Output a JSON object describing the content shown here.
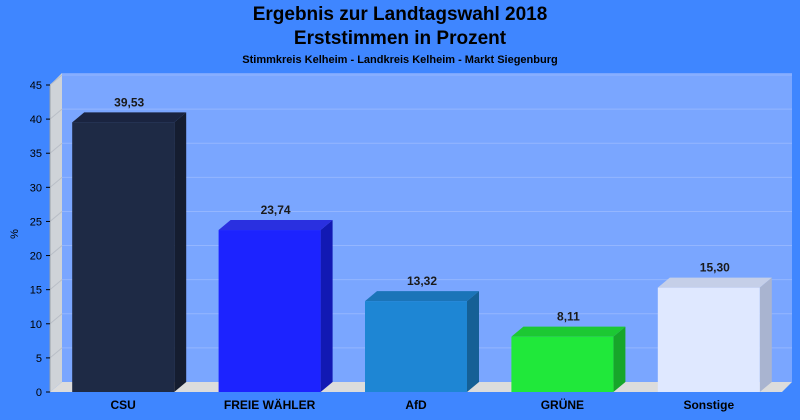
{
  "header": {
    "title": "Ergebnis zur Landtagswahl 2018",
    "subtitle": "Erststimmen in Prozent",
    "caption": "Stimmkreis Kelheim - Landkreis Kelheim - Markt Siegenburg"
  },
  "chart_data": {
    "type": "bar",
    "title": "Ergebnis zur Landtagswahl 2018",
    "subtitle": "Erststimmen in Prozent",
    "xlabel": "",
    "ylabel": "%",
    "categories": [
      "CSU",
      "FREIE WÄHLER",
      "AfD",
      "GRÜNE",
      "Sonstige"
    ],
    "values": [
      39.53,
      23.74,
      13.32,
      8.11,
      15.3
    ],
    "value_labels": [
      "39,53",
      "23,74",
      "13,32",
      "8,11",
      "15,30"
    ],
    "ylim": [
      0,
      45
    ],
    "yticks": [
      0,
      5,
      10,
      15,
      20,
      25,
      30,
      35,
      40,
      45
    ],
    "grid": true,
    "colors": [
      "#1e2a45",
      "#1c23ff",
      "#1e86d4",
      "#20e83a",
      "#dfe8ff"
    ],
    "side_colors": [
      "#151d30",
      "#1219b3",
      "#156096",
      "#17a62a",
      "#a9b4d0"
    ],
    "top_colors": [
      "#1a2440",
      "#2a30e0",
      "#1b74b8",
      "#1cc833",
      "#c5cfe8"
    ]
  }
}
